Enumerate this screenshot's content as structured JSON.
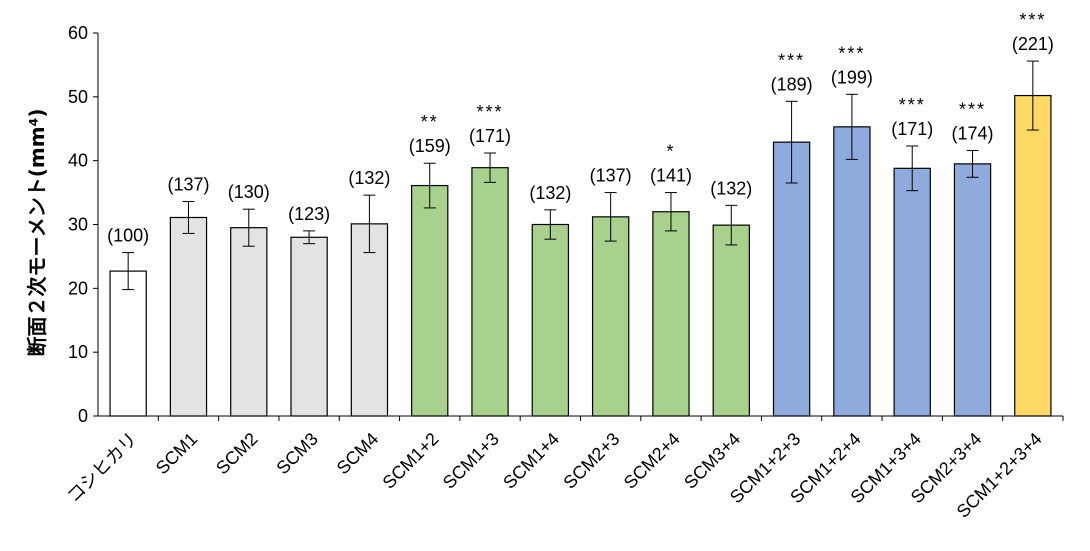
{
  "chart_data": {
    "type": "bar",
    "ylabel": "断面２次モーメント(mm⁴)",
    "ylim": [
      0,
      60
    ],
    "yticks": [
      0,
      10,
      20,
      30,
      40,
      50,
      60
    ],
    "grid": false,
    "categories": [
      "コシヒカリ",
      "SCM1",
      "SCM2",
      "SCM3",
      "SCM4",
      "SCM1+2",
      "SCM1+3",
      "SCM1+4",
      "SCM2+3",
      "SCM2+4",
      "SCM3+4",
      "SCM1+2+3",
      "SCM1+2+4",
      "SCM1+3+4",
      "SCM2+3+4",
      "SCM1+2+3+4"
    ],
    "values": [
      22.7,
      31.1,
      29.5,
      28.0,
      30.1,
      36.1,
      38.9,
      30.0,
      31.2,
      32.0,
      29.9,
      42.9,
      45.3,
      38.8,
      39.5,
      50.2
    ],
    "errors": [
      2.9,
      2.5,
      2.9,
      1.0,
      4.5,
      3.5,
      2.3,
      2.3,
      3.8,
      3.0,
      3.1,
      6.4,
      5.1,
      3.5,
      2.1,
      5.4
    ],
    "bar_labels": [
      "(100)",
      "(137)",
      "(130)",
      "(123)",
      "(132)",
      "(159)",
      "(171)",
      "(132)",
      "(137)",
      "(141)",
      "(132)",
      "(189)",
      "(199)",
      "(171)",
      "(174)",
      "(221)"
    ],
    "significance": [
      "",
      "",
      "",
      "",
      "",
      "**",
      "***",
      "",
      "",
      "*",
      "",
      "***",
      "***",
      "***",
      "***",
      "***"
    ],
    "colors": [
      "#ffffff",
      "#e3e3e3",
      "#e3e3e3",
      "#e3e3e3",
      "#e3e3e3",
      "#a9d18e",
      "#a9d18e",
      "#a9d18e",
      "#a9d18e",
      "#a9d18e",
      "#a9d18e",
      "#8faadc",
      "#8faadc",
      "#8faadc",
      "#8faadc",
      "#ffd966"
    ]
  }
}
